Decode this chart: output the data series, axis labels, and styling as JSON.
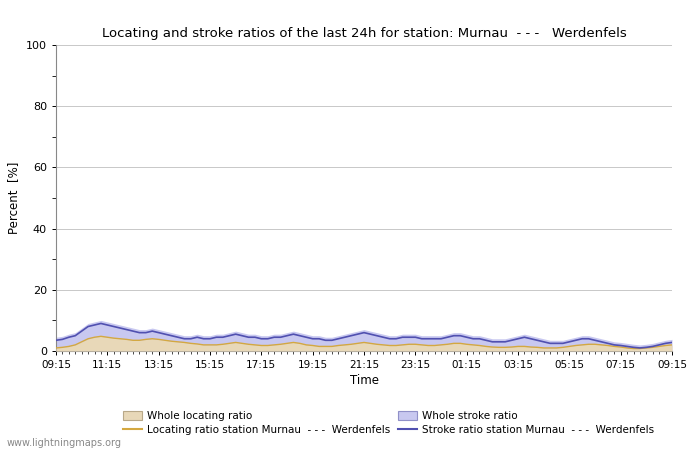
{
  "title": "Locating and stroke ratios of the last 24h for station: Murnau  - - -   Werdenfels",
  "xlabel": "Time",
  "ylabel": "Percent  [%]",
  "ylim": [
    0,
    100
  ],
  "yticks": [
    0,
    20,
    40,
    60,
    80,
    100
  ],
  "ytick_minor": [
    10,
    30,
    50,
    70,
    90
  ],
  "x_labels": [
    "09:15",
    "11:15",
    "13:15",
    "15:15",
    "17:15",
    "19:15",
    "21:15",
    "23:15",
    "01:15",
    "03:15",
    "05:15",
    "07:15",
    "09:15"
  ],
  "background_color": "#ffffff",
  "grid_color": "#c8c8c8",
  "watermark": "www.lightningmaps.org",
  "whole_locating_color": "#e8d8b8",
  "whole_stroke_color": "#c8c8f0",
  "line_locating_color": "#d4a840",
  "line_stroke_color": "#5050b0",
  "n_points": 97,
  "whole_locating_data": [
    1.0,
    1.2,
    1.5,
    2.0,
    3.0,
    4.0,
    4.5,
    4.8,
    4.5,
    4.2,
    4.0,
    3.8,
    3.5,
    3.5,
    3.8,
    4.0,
    3.8,
    3.5,
    3.2,
    3.0,
    2.8,
    2.5,
    2.3,
    2.0,
    2.0,
    2.0,
    2.2,
    2.5,
    2.8,
    2.5,
    2.2,
    2.0,
    1.8,
    1.8,
    2.0,
    2.2,
    2.5,
    2.8,
    2.5,
    2.0,
    1.8,
    1.5,
    1.5,
    1.5,
    1.8,
    2.0,
    2.2,
    2.5,
    2.8,
    2.5,
    2.2,
    2.0,
    1.8,
    1.8,
    2.0,
    2.2,
    2.2,
    2.0,
    1.8,
    1.8,
    2.0,
    2.2,
    2.5,
    2.5,
    2.2,
    2.0,
    1.8,
    1.5,
    1.3,
    1.2,
    1.2,
    1.3,
    1.5,
    1.5,
    1.3,
    1.2,
    1.0,
    1.0,
    1.0,
    1.2,
    1.5,
    1.8,
    2.0,
    2.2,
    2.2,
    2.0,
    1.8,
    1.5,
    1.3,
    1.0,
    0.8,
    0.8,
    1.0,
    1.2,
    1.5,
    1.8,
    2.0
  ],
  "whole_stroke_data": [
    4.5,
    4.8,
    5.5,
    6.0,
    7.5,
    9.0,
    9.5,
    10.0,
    9.5,
    9.0,
    8.5,
    8.0,
    7.5,
    7.0,
    7.0,
    7.5,
    7.0,
    6.5,
    6.0,
    5.5,
    5.0,
    5.0,
    5.5,
    5.0,
    5.0,
    5.5,
    5.5,
    6.0,
    6.5,
    6.0,
    5.5,
    5.5,
    5.0,
    5.0,
    5.5,
    5.5,
    6.0,
    6.5,
    6.0,
    5.5,
    5.0,
    5.0,
    4.5,
    4.5,
    5.0,
    5.5,
    6.0,
    6.5,
    7.0,
    6.5,
    6.0,
    5.5,
    5.0,
    5.0,
    5.5,
    5.5,
    5.5,
    5.0,
    5.0,
    5.0,
    5.0,
    5.5,
    6.0,
    6.0,
    5.5,
    5.0,
    5.0,
    4.5,
    4.0,
    4.0,
    4.0,
    4.5,
    5.0,
    5.5,
    5.0,
    4.5,
    4.0,
    3.5,
    3.5,
    3.5,
    4.0,
    4.5,
    5.0,
    5.0,
    4.5,
    4.0,
    3.5,
    3.0,
    2.8,
    2.5,
    2.2,
    2.0,
    2.2,
    2.5,
    3.0,
    3.5,
    3.8
  ],
  "locating_line_data": [
    1.0,
    1.2,
    1.5,
    2.0,
    3.0,
    4.0,
    4.5,
    4.8,
    4.5,
    4.2,
    4.0,
    3.8,
    3.5,
    3.5,
    3.8,
    4.0,
    3.8,
    3.5,
    3.2,
    3.0,
    2.8,
    2.5,
    2.3,
    2.0,
    2.0,
    2.0,
    2.2,
    2.5,
    2.8,
    2.5,
    2.2,
    2.0,
    1.8,
    1.8,
    2.0,
    2.2,
    2.5,
    2.8,
    2.5,
    2.0,
    1.8,
    1.5,
    1.5,
    1.5,
    1.8,
    2.0,
    2.2,
    2.5,
    2.8,
    2.5,
    2.2,
    2.0,
    1.8,
    1.8,
    2.0,
    2.2,
    2.2,
    2.0,
    1.8,
    1.8,
    2.0,
    2.2,
    2.5,
    2.5,
    2.2,
    2.0,
    1.8,
    1.5,
    1.3,
    1.2,
    1.2,
    1.3,
    1.5,
    1.5,
    1.3,
    1.2,
    1.0,
    1.0,
    1.0,
    1.2,
    1.5,
    1.8,
    2.0,
    2.2,
    2.2,
    2.0,
    1.8,
    1.5,
    1.3,
    1.0,
    0.8,
    0.8,
    1.0,
    1.2,
    1.5,
    1.8,
    2.0
  ],
  "stroke_line_data": [
    3.5,
    3.8,
    4.5,
    5.0,
    6.5,
    8.0,
    8.5,
    9.0,
    8.5,
    8.0,
    7.5,
    7.0,
    6.5,
    6.0,
    6.0,
    6.5,
    6.0,
    5.5,
    5.0,
    4.5,
    4.0,
    4.0,
    4.5,
    4.0,
    4.0,
    4.5,
    4.5,
    5.0,
    5.5,
    5.0,
    4.5,
    4.5,
    4.0,
    4.0,
    4.5,
    4.5,
    5.0,
    5.5,
    5.0,
    4.5,
    4.0,
    4.0,
    3.5,
    3.5,
    4.0,
    4.5,
    5.0,
    5.5,
    6.0,
    5.5,
    5.0,
    4.5,
    4.0,
    4.0,
    4.5,
    4.5,
    4.5,
    4.0,
    4.0,
    4.0,
    4.0,
    4.5,
    5.0,
    5.0,
    4.5,
    4.0,
    4.0,
    3.5,
    3.0,
    3.0,
    3.0,
    3.5,
    4.0,
    4.5,
    4.0,
    3.5,
    3.0,
    2.5,
    2.5,
    2.5,
    3.0,
    3.5,
    4.0,
    4.0,
    3.5,
    3.0,
    2.5,
    2.0,
    1.8,
    1.5,
    1.2,
    1.0,
    1.2,
    1.5,
    2.0,
    2.5,
    2.8
  ]
}
